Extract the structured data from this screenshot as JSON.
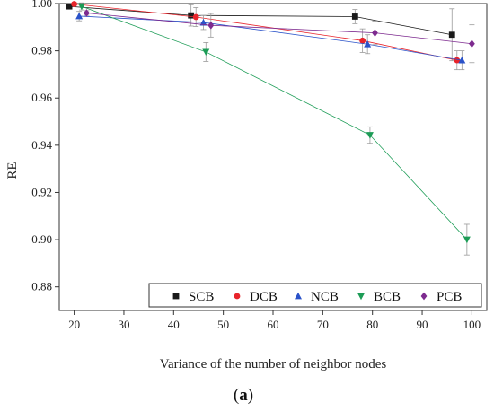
{
  "chart_data": {
    "type": "line",
    "title": "",
    "xlabel": "Variance of the number of neighbor nodes",
    "ylabel": "RE",
    "xlim": [
      17,
      103
    ],
    "ylim": [
      0.87,
      1.0
    ],
    "xticks": [
      "20",
      "30",
      "40",
      "50",
      "60",
      "70",
      "80",
      "90",
      "100"
    ],
    "yticks": [
      "0.88",
      "0.90",
      "0.92",
      "0.94",
      "0.96",
      "0.98",
      "1.00"
    ],
    "grid": false,
    "legend_position": "bottom-right",
    "caption": {
      "open": "(",
      "letter": "a",
      "close": ")"
    },
    "series": [
      {
        "name": "SCB",
        "color": "#1a1a1a",
        "marker": "square",
        "x": [
          19,
          43.5,
          76.5,
          96
        ],
        "y": [
          0.9988,
          0.995,
          0.9945,
          0.9868
        ],
        "err": [
          0.0004,
          0.0045,
          0.003,
          0.011
        ]
      },
      {
        "name": "DCB",
        "color": "#e8242b",
        "marker": "circle",
        "x": [
          20,
          44.5,
          78,
          97
        ],
        "y": [
          0.9998,
          0.9943,
          0.9843,
          0.976
        ],
        "err": [
          0.0004,
          0.004,
          0.005,
          0.004
        ]
      },
      {
        "name": "NCB",
        "color": "#2a52c9",
        "marker": "triangle-up",
        "x": [
          21,
          46,
          79,
          98
        ],
        "y": [
          0.9947,
          0.992,
          0.9828,
          0.976
        ],
        "err": [
          0.002,
          0.003,
          0.004,
          0.004
        ]
      },
      {
        "name": "BCB",
        "color": "#1c9c56",
        "marker": "triangle-down",
        "x": [
          21.5,
          46.5,
          79.5,
          99
        ],
        "y": [
          0.9988,
          0.9795,
          0.9443,
          0.9
        ],
        "err": [
          0.0015,
          0.004,
          0.0035,
          0.0065
        ]
      },
      {
        "name": "PCB",
        "color": "#7d2a8f",
        "marker": "diamond",
        "x": [
          22.5,
          47.5,
          80.5,
          100
        ],
        "y": [
          0.996,
          0.9908,
          0.9876,
          0.983
        ],
        "err": [
          0.001,
          0.005,
          0.005,
          0.008
        ]
      }
    ]
  }
}
